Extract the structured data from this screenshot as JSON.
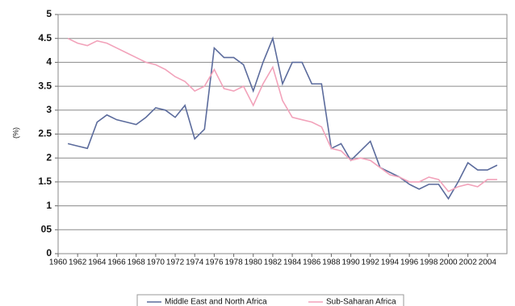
{
  "chart_data": {
    "type": "line",
    "y_label": "(%)",
    "x": [
      1961,
      1962,
      1963,
      1964,
      1965,
      1966,
      1967,
      1968,
      1969,
      1970,
      1971,
      1972,
      1973,
      1974,
      1975,
      1976,
      1977,
      1978,
      1979,
      1980,
      1981,
      1982,
      1983,
      1984,
      1985,
      1986,
      1987,
      1988,
      1989,
      1990,
      1991,
      1992,
      1993,
      1994,
      1995,
      1996,
      1997,
      1998,
      1999,
      2000,
      2001,
      2002,
      2003,
      2004,
      2005
    ],
    "series": [
      {
        "name": "Middle East and North Africa",
        "color": "#5b6b9c",
        "values": [
          2.3,
          2.25,
          2.2,
          2.75,
          2.9,
          2.8,
          2.75,
          2.7,
          2.85,
          3.05,
          3.0,
          2.85,
          3.1,
          2.4,
          2.6,
          4.3,
          4.1,
          4.1,
          3.95,
          3.4,
          4.0,
          4.5,
          3.55,
          4.0,
          4.0,
          3.55,
          3.55,
          2.2,
          2.3,
          1.95,
          2.15,
          2.35,
          1.8,
          1.7,
          1.6,
          1.45,
          1.35,
          1.45,
          1.45,
          1.15,
          1.5,
          1.9,
          1.75,
          1.75,
          1.85
        ]
      },
      {
        "name": "Sub-Saharan Africa",
        "color": "#f2a2ba",
        "values": [
          4.5,
          4.4,
          4.35,
          4.45,
          4.4,
          4.3,
          4.2,
          4.1,
          4.0,
          3.95,
          3.85,
          3.7,
          3.6,
          3.4,
          3.5,
          3.85,
          3.45,
          3.4,
          3.5,
          3.1,
          3.55,
          3.9,
          3.2,
          2.85,
          2.8,
          2.75,
          2.65,
          2.2,
          2.15,
          1.95,
          2.0,
          1.95,
          1.8,
          1.65,
          1.6,
          1.5,
          1.5,
          1.6,
          1.55,
          1.3,
          1.4,
          1.45,
          1.4,
          1.55,
          1.55
        ]
      }
    ],
    "xlim": [
      1960,
      2006
    ],
    "xticks": [
      1960,
      1962,
      1964,
      1966,
      1968,
      1970,
      1972,
      1974,
      1976,
      1978,
      1980,
      1982,
      1984,
      1986,
      1988,
      1990,
      1992,
      1994,
      1996,
      1998,
      2000,
      2002,
      2004
    ],
    "ylim": [
      0,
      5
    ],
    "yticks": [
      0,
      {
        "value": 0.5,
        "label": "05"
      },
      1,
      1.5,
      2,
      2.5,
      3,
      3.5,
      4,
      4.5,
      5
    ],
    "grid": true
  }
}
